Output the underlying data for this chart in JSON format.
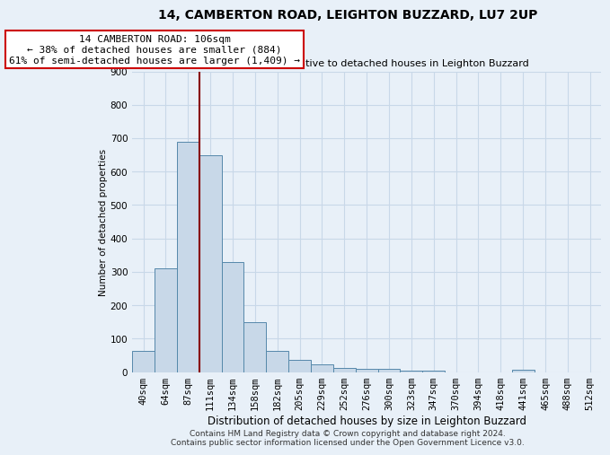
{
  "title": "14, CAMBERTON ROAD, LEIGHTON BUZZARD, LU7 2UP",
  "subtitle": "Size of property relative to detached houses in Leighton Buzzard",
  "xlabel": "Distribution of detached houses by size in Leighton Buzzard",
  "ylabel": "Number of detached properties",
  "footer1": "Contains HM Land Registry data © Crown copyright and database right 2024.",
  "footer2": "Contains public sector information licensed under the Open Government Licence v3.0.",
  "bar_labels": [
    "40sqm",
    "64sqm",
    "87sqm",
    "111sqm",
    "134sqm",
    "158sqm",
    "182sqm",
    "205sqm",
    "229sqm",
    "252sqm",
    "276sqm",
    "300sqm",
    "323sqm",
    "347sqm",
    "370sqm",
    "394sqm",
    "418sqm",
    "441sqm",
    "465sqm",
    "488sqm",
    "512sqm"
  ],
  "bar_values": [
    63,
    310,
    690,
    648,
    330,
    148,
    63,
    35,
    22,
    13,
    10,
    9,
    5,
    5,
    0,
    0,
    0,
    8,
    0,
    0,
    0
  ],
  "bar_color": "#c8d8e8",
  "bar_edge_color": "#5588aa",
  "ylim": [
    0,
    900
  ],
  "yticks": [
    0,
    100,
    200,
    300,
    400,
    500,
    600,
    700,
    800,
    900
  ],
  "red_line_color": "#880000",
  "annotation_text": "14 CAMBERTON ROAD: 106sqm\n← 38% of detached houses are smaller (884)\n61% of semi-detached houses are larger (1,409) →",
  "annotation_box_color": "#ffffff",
  "annotation_border_color": "#cc0000",
  "grid_color": "#c8d8e8",
  "background_color": "#e8f0f8",
  "title_fontsize": 10,
  "subtitle_fontsize": 8,
  "xlabel_fontsize": 8.5,
  "ylabel_fontsize": 7.5,
  "tick_fontsize": 7.5,
  "annotation_fontsize": 8,
  "footer_fontsize": 6.5
}
